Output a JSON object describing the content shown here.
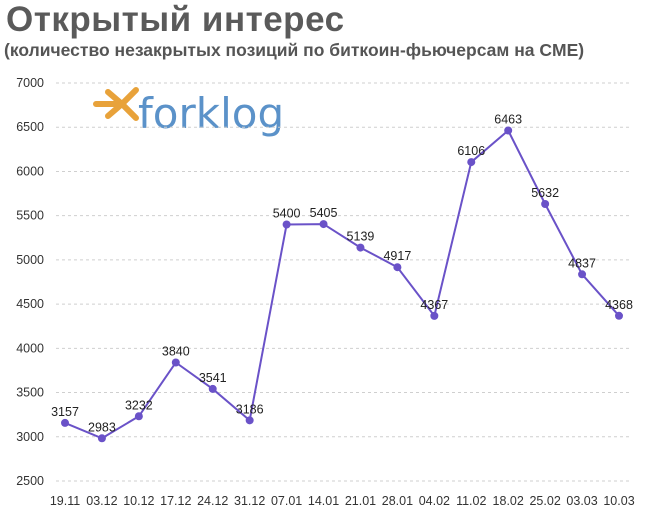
{
  "header": {
    "title": "Открытый интерес",
    "subtitle": "(количество незакрытых позиций по биткоин-фьючерсам на CME)"
  },
  "logo": {
    "text": "forklog",
    "icon": "forklog-arrow-icon",
    "color": "#5b92c9",
    "accent": "#e8a23a"
  },
  "chart_data": {
    "type": "line",
    "title": "Открытый интерес",
    "subtitle": "(количество незакрытых позиций по биткоин-фьючерсам на CME)",
    "categories": [
      "19.11",
      "03.12",
      "10.12",
      "17.12",
      "24.12",
      "31.12",
      "07.01",
      "14.01",
      "21.01",
      "28.01",
      "04.02",
      "11.02",
      "18.02",
      "25.02",
      "03.03",
      "10.03"
    ],
    "series": [
      {
        "values": [
          3157,
          2983,
          3232,
          3840,
          3541,
          3186,
          5400,
          5405,
          5139,
          4917,
          4367,
          6106,
          6463,
          5632,
          4837,
          4368
        ],
        "color": "#6a52c8"
      }
    ],
    "ylim": [
      2500,
      7000
    ],
    "yticks": [
      2500,
      3000,
      3500,
      4000,
      4500,
      5000,
      5500,
      6000,
      6500,
      7000
    ],
    "grid": "horizontal-dashed",
    "data_labels": true,
    "legend": "none"
  }
}
